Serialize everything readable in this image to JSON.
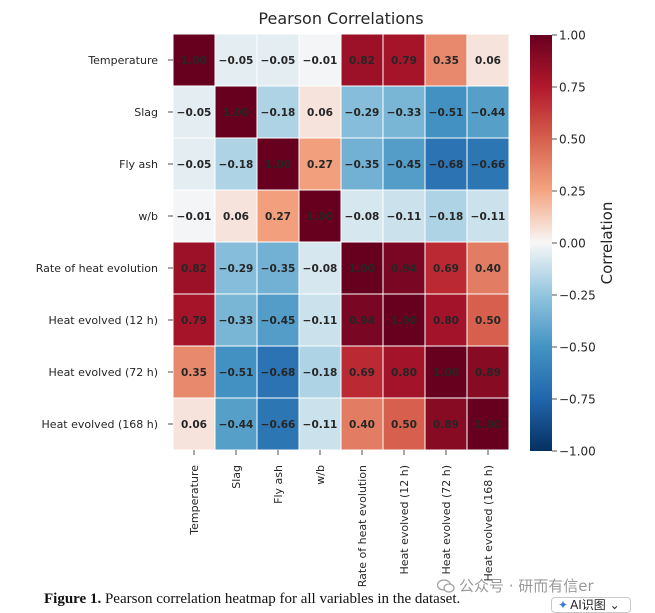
{
  "chart_data": {
    "type": "heatmap",
    "title": "Pearson Correlations",
    "row_labels": [
      "Temperature",
      "Slag",
      "Fly ash",
      "w/b",
      "Rate of heat evolution",
      "Heat evolved (12 h)",
      "Heat evolved (72 h)",
      "Heat evolved (168 h)"
    ],
    "col_labels": [
      "Temperature",
      "Slag",
      "Fly ash",
      "w/b",
      "Rate of heat evolution",
      "Heat evolved (12 h)",
      "Heat evolved (72 h)",
      "Heat evolved (168 h)"
    ],
    "matrix": [
      [
        1.0,
        -0.05,
        -0.05,
        -0.01,
        0.82,
        0.79,
        0.35,
        0.06
      ],
      [
        -0.05,
        1.0,
        -0.18,
        0.06,
        -0.29,
        -0.33,
        -0.51,
        -0.44
      ],
      [
        -0.05,
        -0.18,
        1.0,
        0.27,
        -0.35,
        -0.45,
        -0.68,
        -0.66
      ],
      [
        -0.01,
        0.06,
        0.27,
        1.0,
        -0.08,
        -0.11,
        -0.18,
        -0.11
      ],
      [
        0.82,
        -0.29,
        -0.35,
        -0.08,
        1.0,
        0.94,
        0.69,
        0.4
      ],
      [
        0.79,
        -0.33,
        -0.45,
        -0.11,
        0.94,
        1.0,
        0.8,
        0.5
      ],
      [
        0.35,
        -0.51,
        -0.68,
        -0.18,
        0.69,
        0.8,
        1.0,
        0.89
      ],
      [
        0.06,
        -0.44,
        -0.66,
        -0.11,
        0.4,
        0.5,
        0.89,
        1.0
      ]
    ],
    "colorbar": {
      "label": "Correlation",
      "vmin": -1.0,
      "vmax": 1.0,
      "ticks": [
        1.0,
        0.75,
        0.5,
        0.25,
        0.0,
        -0.25,
        -0.5,
        -0.75,
        -1.0
      ],
      "tick_labels": [
        "1.00",
        "0.75",
        "0.50",
        "0.25",
        "0.00",
        "−0.25",
        "−0.50",
        "−0.75",
        "−1.00"
      ],
      "colormap": "RdBu_r"
    }
  },
  "caption": {
    "label": "Figure 1.",
    "text": " Pearson correlation heatmap for all variables in the dataset."
  },
  "watermark": {
    "text": "公众号 · 研而有信er"
  },
  "ai_button": {
    "label": "AI识图",
    "chevron": "⌄"
  },
  "colors": {
    "text": "#262626",
    "cell_border": "#ffffff"
  }
}
